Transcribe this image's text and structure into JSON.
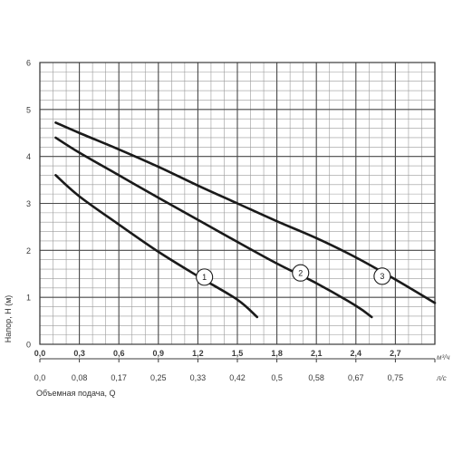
{
  "chart_data": {
    "type": "line",
    "title": "",
    "xlabel": "Объемная подача, Q",
    "ylabel": "Напор, H (м)",
    "x_unit_primary": "м³/ч",
    "x_unit_secondary": "л/с",
    "xlim": [
      0,
      3.0
    ],
    "ylim": [
      0,
      6
    ],
    "grid": true,
    "x_ticks_primary": [
      "0,0",
      "0,3",
      "0,6",
      "0,9",
      "1,2",
      "1,5",
      "1,8",
      "2,1",
      "2,4",
      "2,7"
    ],
    "x_ticks_secondary": [
      "0,0",
      "0,08",
      "0,17",
      "0,25",
      "0,33",
      "0,42",
      "0,5",
      "0,58",
      "0,67",
      "0,75"
    ],
    "y_ticks": [
      "0",
      "1",
      "2",
      "3",
      "4",
      "5",
      "6"
    ],
    "series": [
      {
        "name": "1",
        "x": [
          0.12,
          0.3,
          0.6,
          0.9,
          1.2,
          1.5,
          1.65
        ],
        "y": [
          3.6,
          3.15,
          2.55,
          1.97,
          1.45,
          0.95,
          0.58
        ]
      },
      {
        "name": "2",
        "x": [
          0.12,
          0.3,
          0.6,
          0.9,
          1.2,
          1.5,
          1.8,
          2.1,
          2.4,
          2.52
        ],
        "y": [
          4.4,
          4.08,
          3.6,
          3.12,
          2.65,
          2.18,
          1.72,
          1.3,
          0.82,
          0.58
        ]
      },
      {
        "name": "3",
        "x": [
          0.12,
          0.3,
          0.6,
          0.9,
          1.2,
          1.5,
          1.8,
          2.1,
          2.4,
          2.7,
          3.0
        ],
        "y": [
          4.72,
          4.5,
          4.15,
          3.78,
          3.38,
          3.0,
          2.62,
          2.26,
          1.85,
          1.38,
          0.88
        ]
      }
    ],
    "markers": [
      {
        "label": "1",
        "x": 1.25,
        "y": 1.43
      },
      {
        "label": "2",
        "x": 1.98,
        "y": 1.52
      },
      {
        "label": "3",
        "x": 2.6,
        "y": 1.45
      }
    ]
  }
}
